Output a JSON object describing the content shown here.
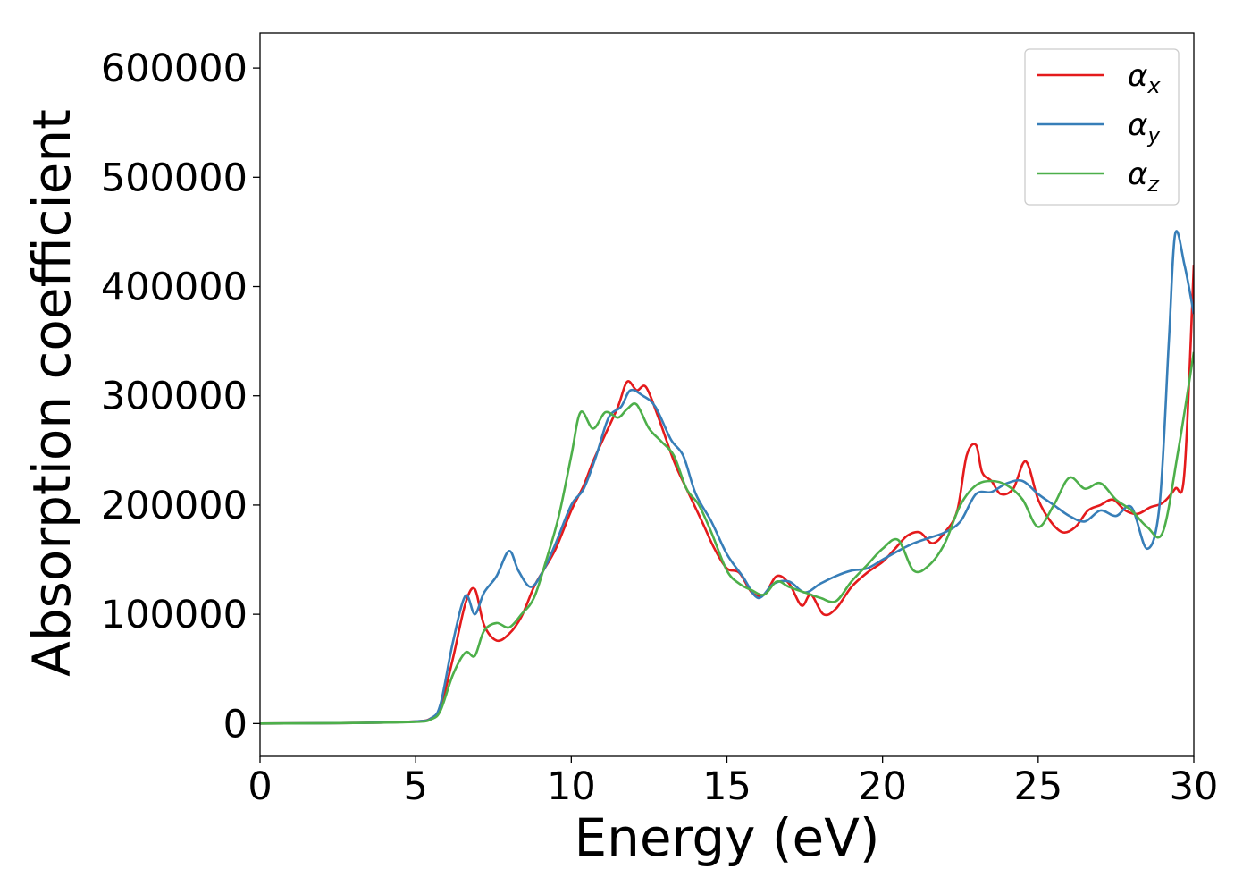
{
  "chart_data": {
    "type": "line",
    "title": "",
    "xlabel": "Energy (eV)",
    "ylabel": "Absorption coefficient",
    "xlim": [
      0,
      30
    ],
    "ylim": [
      -30000,
      632000
    ],
    "xticks": [
      0,
      5,
      10,
      15,
      20,
      25,
      30
    ],
    "xtick_labels": [
      "0",
      "5",
      "10",
      "15",
      "20",
      "25",
      "30"
    ],
    "yticks": [
      0,
      100000,
      200000,
      300000,
      400000,
      500000,
      600000
    ],
    "ytick_labels": [
      "0",
      "100000",
      "200000",
      "300000",
      "400000",
      "500000",
      "600000"
    ],
    "grid": false,
    "legend_position": "top-right",
    "series": [
      {
        "name": "α_x",
        "legend_base": "α",
        "legend_sub": "x",
        "color": "#e41a1c",
        "x": [
          0,
          3,
          5,
          5.5,
          5.8,
          6.2,
          6.6,
          6.9,
          7.2,
          7.6,
          8,
          8.4,
          8.8,
          9.1,
          9.5,
          10,
          10.4,
          10.7,
          11.1,
          11.5,
          11.8,
          12.1,
          12.4,
          12.8,
          13.3,
          13.7,
          14.2,
          14.6,
          15,
          15.4,
          15.8,
          16.2,
          16.6,
          17,
          17.4,
          17.7,
          18.1,
          18.5,
          19,
          19.5,
          20,
          20.4,
          20.8,
          21.2,
          21.6,
          22,
          22.4,
          22.7,
          23,
          23.2,
          23.5,
          23.8,
          24.2,
          24.6,
          25,
          25.4,
          25.8,
          26.2,
          26.6,
          27,
          27.4,
          27.8,
          28.2,
          28.6,
          29,
          29.4,
          29.7,
          30
        ],
        "y": [
          0,
          500,
          2000,
          5000,
          15000,
          60000,
          110000,
          123000,
          90000,
          76000,
          82000,
          98000,
          125000,
          140000,
          160000,
          195000,
          218000,
          240000,
          265000,
          290000,
          313000,
          305000,
          308000,
          280000,
          240000,
          215000,
          185000,
          160000,
          142000,
          138000,
          120000,
          118000,
          135000,
          128000,
          108000,
          118000,
          100000,
          105000,
          125000,
          138000,
          148000,
          160000,
          172000,
          175000,
          165000,
          175000,
          195000,
          245000,
          255000,
          230000,
          222000,
          210000,
          215000,
          240000,
          205000,
          185000,
          175000,
          180000,
          195000,
          200000,
          205000,
          195000,
          192000,
          198000,
          202000,
          215000,
          230000,
          420000
        ]
      },
      {
        "name": "α_y",
        "legend_base": "α",
        "legend_sub": "y",
        "color": "#377eb8",
        "x": [
          0,
          3,
          5,
          5.5,
          5.8,
          6.2,
          6.6,
          6.9,
          7.2,
          7.6,
          8,
          8.3,
          8.7,
          9.1,
          9.5,
          10,
          10.4,
          10.8,
          11.2,
          11.6,
          11.9,
          12.3,
          12.7,
          13.2,
          13.6,
          14,
          14.5,
          15,
          15.5,
          16,
          16.5,
          17,
          17.5,
          18,
          18.5,
          19,
          19.5,
          20,
          20.5,
          21,
          21.5,
          22,
          22.5,
          23,
          23.5,
          24,
          24.5,
          25,
          25.5,
          26,
          26.5,
          27,
          27.5,
          28,
          28.5,
          28.9,
          29.2,
          29.4,
          29.7,
          30
        ],
        "y": [
          0,
          500,
          2000,
          5000,
          18000,
          75000,
          117000,
          100000,
          120000,
          135000,
          158000,
          140000,
          125000,
          140000,
          165000,
          200000,
          215000,
          245000,
          280000,
          290000,
          305000,
          300000,
          290000,
          260000,
          245000,
          210000,
          185000,
          155000,
          135000,
          115000,
          128000,
          130000,
          120000,
          128000,
          135000,
          140000,
          142000,
          150000,
          158000,
          165000,
          170000,
          175000,
          185000,
          210000,
          212000,
          220000,
          222000,
          210000,
          200000,
          190000,
          185000,
          195000,
          190000,
          198000,
          160000,
          200000,
          350000,
          448000,
          420000,
          375000
        ]
      },
      {
        "name": "α_z",
        "legend_base": "α",
        "legend_sub": "z",
        "color": "#4daf4a",
        "x": [
          0,
          3,
          5,
          5.5,
          5.8,
          6.2,
          6.6,
          6.9,
          7.2,
          7.6,
          8,
          8.4,
          8.8,
          9.2,
          9.6,
          10,
          10.3,
          10.7,
          11.1,
          11.5,
          11.8,
          12.1,
          12.5,
          12.9,
          13.3,
          13.7,
          14.1,
          14.5,
          15,
          15.4,
          15.8,
          16.2,
          16.6,
          17,
          17.5,
          18,
          18.5,
          19,
          19.5,
          20,
          20.5,
          21,
          21.5,
          22,
          22.5,
          23,
          23.5,
          24,
          24.5,
          25,
          25.5,
          26,
          26.5,
          27,
          27.5,
          28,
          28.5,
          29,
          29.5,
          30
        ],
        "y": [
          0,
          500,
          1500,
          4000,
          12000,
          45000,
          65000,
          62000,
          85000,
          92000,
          88000,
          100000,
          115000,
          150000,
          190000,
          245000,
          285000,
          270000,
          285000,
          280000,
          288000,
          292000,
          270000,
          258000,
          245000,
          215000,
          200000,
          175000,
          140000,
          128000,
          122000,
          118000,
          130000,
          125000,
          120000,
          115000,
          112000,
          130000,
          145000,
          160000,
          168000,
          140000,
          145000,
          165000,
          200000,
          218000,
          222000,
          218000,
          205000,
          180000,
          200000,
          225000,
          215000,
          220000,
          205000,
          195000,
          180000,
          175000,
          250000,
          340000
        ]
      }
    ]
  }
}
